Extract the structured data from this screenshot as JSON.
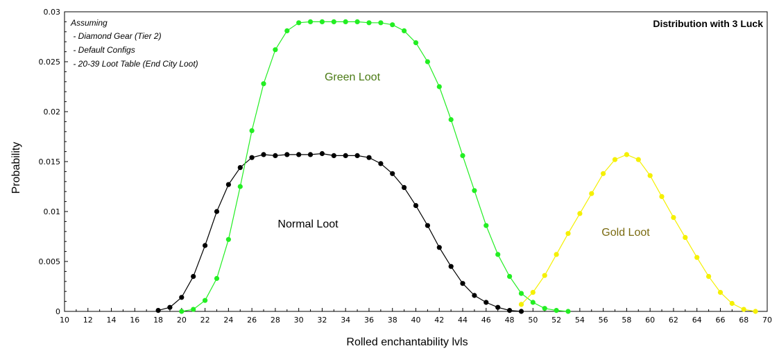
{
  "chart_data": {
    "type": "line",
    "title": "Distribution with 3 Luck",
    "xlabel": "Rolled enchantability lvls",
    "ylabel": "Probability",
    "xlim": [
      10,
      70
    ],
    "ylim": [
      0,
      0.03
    ],
    "x_ticks": [
      "10",
      "12",
      "14",
      "16",
      "18",
      "20",
      "22",
      "24",
      "26",
      "28",
      "30",
      "32",
      "34",
      "36",
      "38",
      "40",
      "42",
      "44",
      "46",
      "48",
      "50",
      "52",
      "54",
      "56",
      "58",
      "60",
      "62",
      "64",
      "66",
      "68",
      "70"
    ],
    "y_ticks": [
      "0",
      "0.005",
      "0.01",
      "0.015",
      "0.02",
      "0.025",
      "0.03"
    ],
    "notes": [
      "Assuming",
      " - Diamond Gear (Tier 2)",
      " - Default Configs",
      " - 20-39 Loot Table (End City Loot)"
    ],
    "grid": false,
    "colors": {
      "normal": "#000000",
      "green": "#22ee22",
      "gold": "#f5f000",
      "green_label": "#4a7a14",
      "gold_label": "#7a6a10"
    },
    "series": [
      {
        "name": "Normal Loot",
        "label": "Normal Loot",
        "x": [
          18,
          19,
          20,
          21,
          22,
          23,
          24,
          25,
          26,
          27,
          28,
          29,
          30,
          31,
          32,
          33,
          34,
          35,
          36,
          37,
          38,
          39,
          40,
          41,
          42,
          43,
          44,
          45,
          46,
          47,
          48,
          49
        ],
        "values": [
          0.0001,
          0.0004,
          0.0014,
          0.0035,
          0.0066,
          0.01,
          0.0127,
          0.0144,
          0.0154,
          0.0157,
          0.0156,
          0.0157,
          0.0157,
          0.0157,
          0.0158,
          0.0156,
          0.0156,
          0.0156,
          0.0154,
          0.0148,
          0.0138,
          0.0124,
          0.0106,
          0.0086,
          0.0064,
          0.0045,
          0.0028,
          0.0016,
          0.0009,
          0.0004,
          0.0001,
          0.0
        ]
      },
      {
        "name": "Green Loot",
        "label": "Green Loot",
        "x": [
          20,
          21,
          22,
          23,
          24,
          25,
          26,
          27,
          28,
          29,
          30,
          31,
          32,
          33,
          34,
          35,
          36,
          37,
          38,
          39,
          40,
          41,
          42,
          43,
          44,
          45,
          46,
          47,
          48,
          49,
          50,
          51,
          52,
          53
        ],
        "values": [
          0.0,
          0.0002,
          0.0011,
          0.0033,
          0.0072,
          0.0125,
          0.0181,
          0.0228,
          0.0262,
          0.0281,
          0.0289,
          0.029,
          0.029,
          0.029,
          0.029,
          0.029,
          0.0289,
          0.0289,
          0.0287,
          0.0281,
          0.0269,
          0.025,
          0.0225,
          0.0192,
          0.0156,
          0.0121,
          0.0086,
          0.0057,
          0.0035,
          0.0018,
          0.0009,
          0.0003,
          0.0001,
          0.0
        ]
      },
      {
        "name": "Gold Loot",
        "label": "Gold Loot",
        "x": [
          49,
          50,
          51,
          52,
          53,
          54,
          55,
          56,
          57,
          58,
          59,
          60,
          61,
          62,
          63,
          64,
          65,
          66,
          67,
          68,
          69
        ],
        "values": [
          0.0007,
          0.0019,
          0.0036,
          0.0057,
          0.0078,
          0.0098,
          0.0118,
          0.0138,
          0.0152,
          0.0157,
          0.0152,
          0.0136,
          0.0115,
          0.0094,
          0.0074,
          0.0054,
          0.0035,
          0.0019,
          0.0008,
          0.0002,
          0.0
        ]
      }
    ]
  }
}
